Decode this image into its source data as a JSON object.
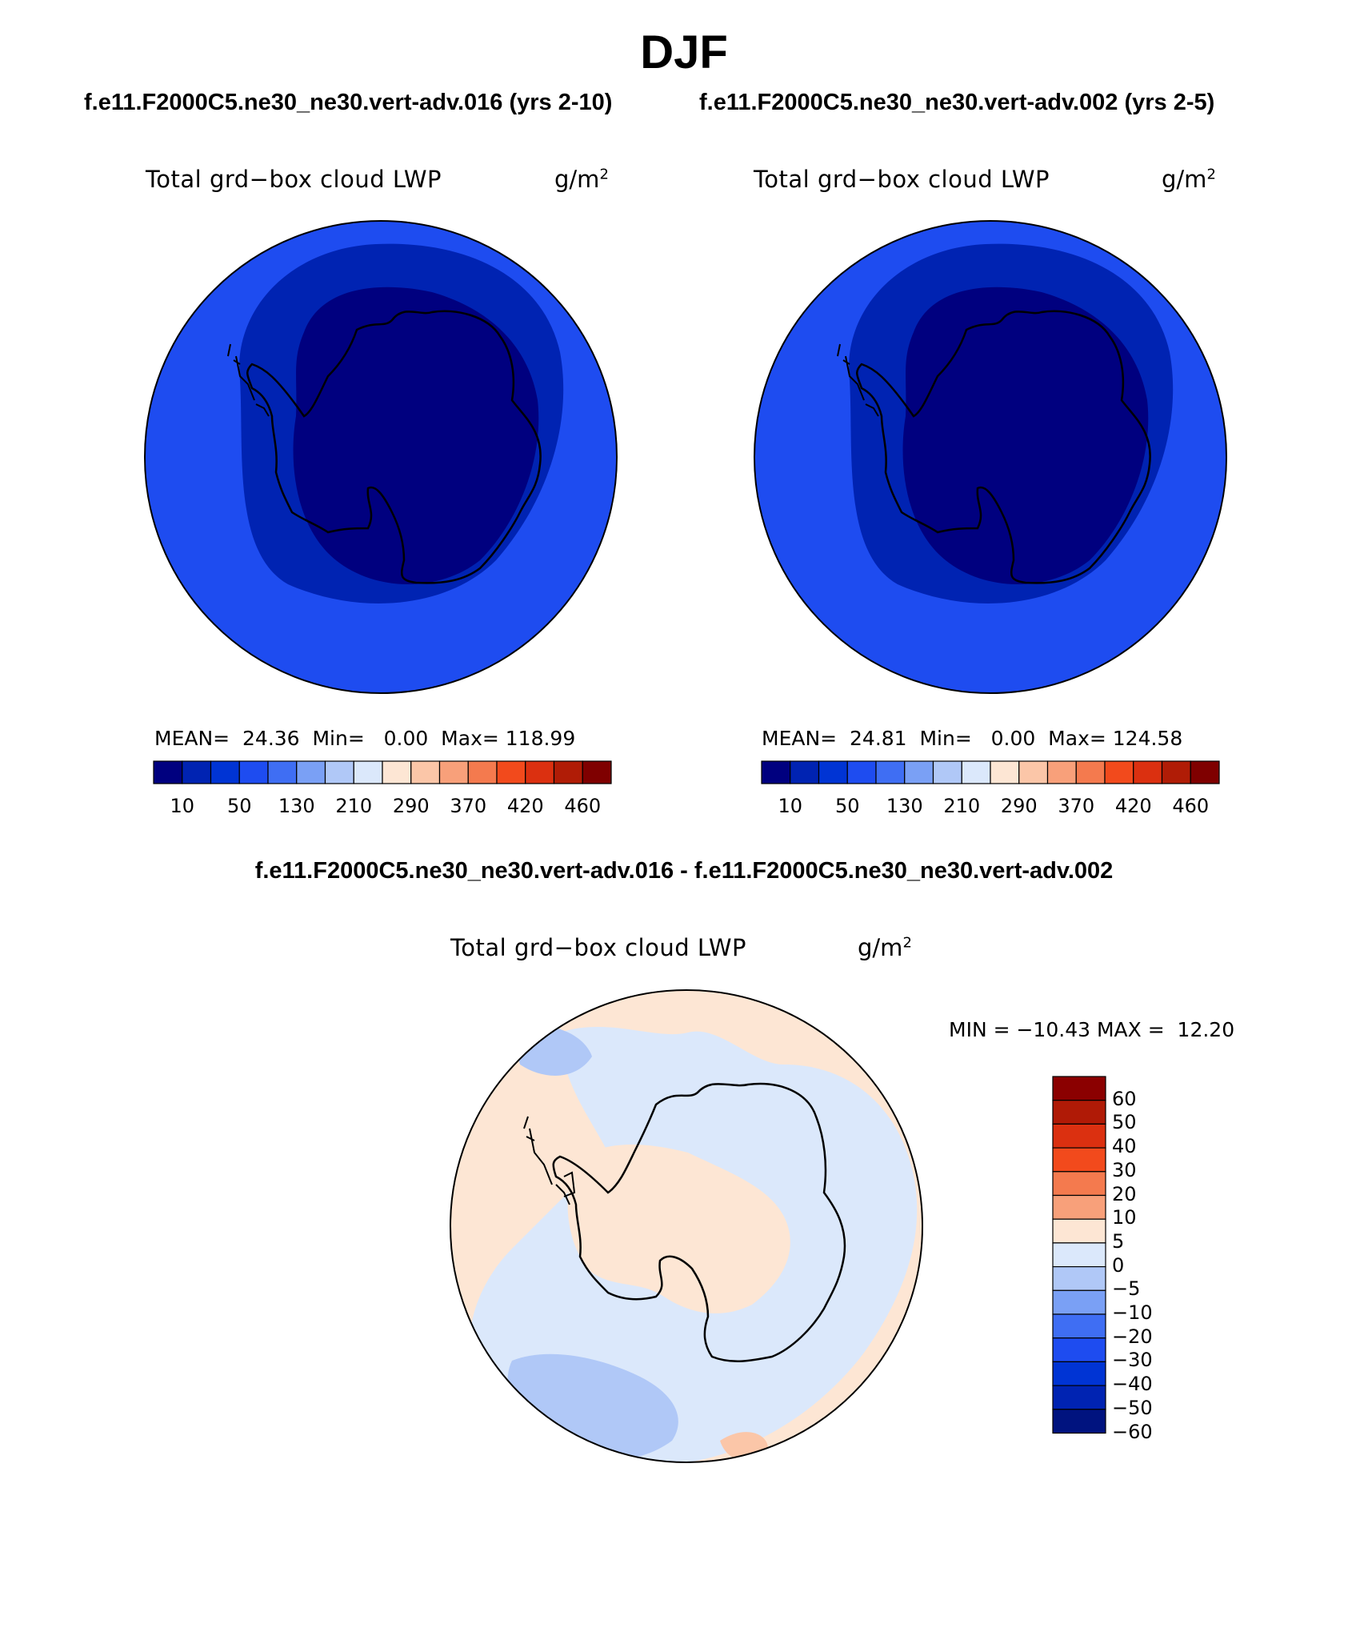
{
  "title": "DJF",
  "panels": [
    {
      "case": "f.e11.F2000C5.ne30_ne30.vert-adv.016 (yrs 2-10)",
      "variable": "Total grd−box cloud LWP",
      "units_base": "g/m",
      "units_exp": "2",
      "stats": "MEAN=  24.36  Min=   0.00  Max= 118.99"
    },
    {
      "case": "f.e11.F2000C5.ne30_ne30.vert-adv.002 (yrs 2-5)",
      "variable": "Total grd−box cloud LWP",
      "units_base": "g/m",
      "units_exp": "2",
      "stats": "MEAN=  24.81  Min=   0.00  Max= 124.58"
    }
  ],
  "colorbar_top": {
    "colors": [
      "#00007f",
      "#0023b2",
      "#0034d4",
      "#1e4cf0",
      "#3f6ef3",
      "#7aa0f5",
      "#b0c8f7",
      "#dbe8fb",
      "#fde6d4",
      "#fbc6a8",
      "#f8a07a",
      "#f47a4e",
      "#f24a1c",
      "#db3010",
      "#b01c06",
      "#7f0000"
    ],
    "labels": [
      "10",
      "50",
      "130",
      "210",
      "290",
      "370",
      "420",
      "460"
    ]
  },
  "diff": {
    "title": "f.e11.F2000C5.ne30_ne30.vert-adv.016 - f.e11.F2000C5.ne30_ne30.vert-adv.002",
    "variable": "Total grd−box cloud LWP",
    "units_base": "g/m",
    "units_exp": "2",
    "minmax": "MIN = −10.43 MAX =  12.20",
    "colorbar": {
      "colors_top_to_bottom": [
        "#8b0000",
        "#b01a06",
        "#db3010",
        "#f24a1c",
        "#f47a4e",
        "#f8a07a",
        "#fde6d4",
        "#dbe8fb",
        "#b0c8f7",
        "#7aa0f5",
        "#3f6ef3",
        "#1e4cf0",
        "#0034d4",
        "#0023b2",
        "#00137f"
      ],
      "labels": [
        "60",
        "50",
        "40",
        "30",
        "20",
        "10",
        "5",
        "0",
        "−5",
        "−10",
        "−20",
        "−30",
        "−40",
        "−50",
        "−60"
      ]
    }
  },
  "map_colors": {
    "lwp_high": "#1e4cf0",
    "lwp_mid": "#0023b2",
    "lwp_low": "#00007f",
    "diff_pos": "#fde6d4",
    "diff_neg": "#dbe8fb",
    "diff_neg2": "#b0c8f7",
    "diff_pos2": "#fbc6a8"
  }
}
